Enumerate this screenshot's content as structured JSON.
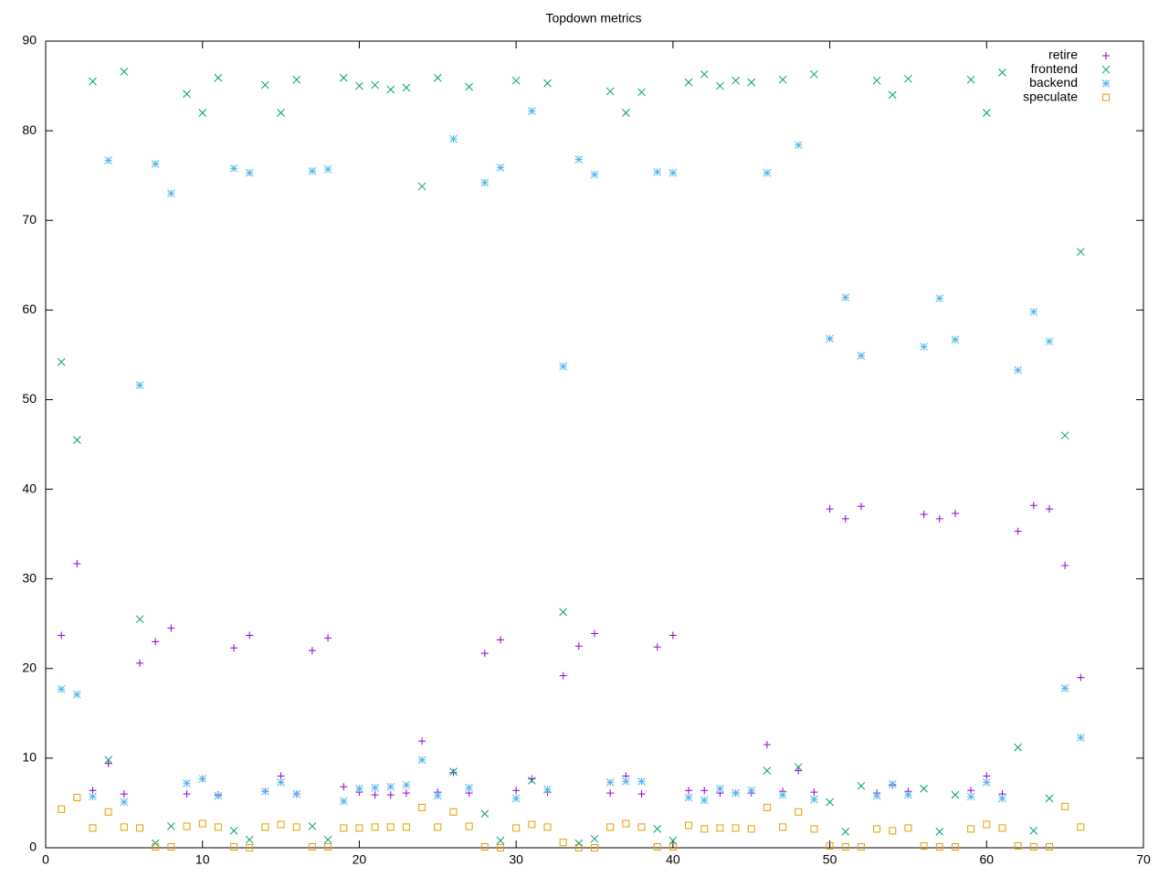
{
  "chart_data": {
    "type": "scatter",
    "title": "Topdown metrics",
    "x": [
      1,
      2,
      3,
      4,
      5,
      6,
      7,
      8,
      9,
      10,
      11,
      12,
      13,
      14,
      15,
      16,
      17,
      18,
      19,
      20,
      21,
      22,
      23,
      24,
      25,
      26,
      27,
      28,
      29,
      30,
      31,
      32,
      33,
      34,
      35,
      36,
      37,
      38,
      39,
      40,
      41,
      42,
      43,
      44,
      45,
      46,
      47,
      48,
      49,
      50,
      51,
      52,
      53,
      54,
      55,
      56,
      57,
      58,
      59,
      60,
      61,
      62,
      63,
      64,
      65,
      66
    ],
    "series": [
      {
        "name": "retire",
        "color": "#9400d3",
        "marker": "plus",
        "values": [
          23.7,
          31.7,
          6.4,
          9.4,
          6.0,
          20.6,
          23.0,
          24.5,
          6.0,
          7.7,
          5.9,
          22.3,
          23.7,
          6.3,
          8.0,
          6.0,
          22.0,
          23.4,
          6.8,
          6.2,
          5.9,
          5.9,
          6.1,
          11.9,
          6.2,
          8.4,
          6.1,
          21.7,
          23.2,
          6.4,
          7.7,
          6.2,
          19.2,
          22.5,
          23.9,
          6.1,
          8.0,
          6.0,
          22.4,
          23.7,
          6.4,
          6.4,
          6.1,
          6.1,
          6.1,
          11.5,
          6.3,
          8.6,
          6.2,
          37.8,
          36.7,
          38.1,
          6.1,
          7.0,
          6.3,
          37.2,
          36.7,
          37.3,
          6.4,
          8.0,
          6.0,
          35.3,
          38.2,
          37.8,
          31.5,
          19.0
        ]
      },
      {
        "name": "frontend",
        "color": "#009e73",
        "marker": "cross",
        "values": [
          54.2,
          45.5,
          85.5,
          9.8,
          86.6,
          25.5,
          0.5,
          2.4,
          84.1,
          82.0,
          85.9,
          1.9,
          0.9,
          85.1,
          82.0,
          85.7,
          2.4,
          0.9,
          85.9,
          85.0,
          85.1,
          84.6,
          84.8,
          73.8,
          85.9,
          8.5,
          84.9,
          3.8,
          0.8,
          85.6,
          7.5,
          85.3,
          26.3,
          0.5,
          1.0,
          84.4,
          82.0,
          84.3,
          2.1,
          0.8,
          85.4,
          86.3,
          85.0,
          85.6,
          85.4,
          8.6,
          85.7,
          9.0,
          86.3,
          5.1,
          1.8,
          6.9,
          85.6,
          84.0,
          85.8,
          6.6,
          1.8,
          5.9,
          85.7,
          82.0,
          86.5,
          11.2,
          1.9,
          5.5,
          46.0,
          66.5
        ]
      },
      {
        "name": "backend",
        "color": "#56b4e9",
        "marker": "star",
        "values": [
          17.7,
          17.1,
          5.7,
          76.7,
          5.1,
          51.6,
          76.3,
          73.0,
          7.2,
          7.7,
          5.8,
          75.8,
          75.3,
          6.3,
          7.3,
          6.0,
          75.5,
          75.7,
          5.2,
          6.6,
          6.7,
          6.8,
          7.0,
          9.8,
          5.8,
          79.1,
          6.7,
          74.2,
          75.9,
          5.5,
          82.2,
          6.5,
          53.7,
          76.8,
          75.1,
          7.3,
          7.4,
          7.4,
          75.4,
          75.3,
          5.6,
          5.3,
          6.6,
          6.1,
          6.4,
          75.3,
          5.9,
          78.4,
          5.4,
          56.8,
          61.4,
          54.9,
          5.8,
          7.1,
          5.9,
          55.9,
          61.3,
          56.7,
          5.7,
          7.3,
          5.5,
          53.3,
          59.8,
          56.5,
          17.8,
          12.3
        ]
      },
      {
        "name": "speculate",
        "color": "#e69f00",
        "marker": "square",
        "values": [
          4.3,
          5.6,
          2.2,
          4.0,
          2.3,
          2.2,
          0.1,
          0.1,
          2.4,
          2.7,
          2.3,
          0.1,
          0.0,
          2.3,
          2.6,
          2.3,
          0.1,
          0.1,
          2.2,
          2.2,
          2.3,
          2.3,
          2.3,
          4.5,
          2.3,
          4.0,
          2.4,
          0.1,
          0.0,
          2.2,
          2.6,
          2.3,
          0.6,
          0.0,
          0.0,
          2.3,
          2.7,
          2.3,
          0.1,
          0.1,
          2.5,
          2.1,
          2.2,
          2.2,
          2.1,
          4.5,
          2.3,
          4.0,
          2.1,
          0.2,
          0.1,
          0.1,
          2.1,
          1.9,
          2.2,
          0.2,
          0.1,
          0.1,
          2.1,
          2.6,
          2.2,
          0.2,
          0.1,
          0.1,
          4.6,
          2.3
        ]
      }
    ],
    "xlim": [
      0,
      70
    ],
    "xticks": [
      0,
      10,
      20,
      30,
      40,
      50,
      60,
      70
    ],
    "ylim": [
      0,
      90
    ],
    "yticks": [
      0,
      10,
      20,
      30,
      40,
      50,
      60,
      70,
      80,
      90
    ],
    "grid": false,
    "legend": "top-right"
  }
}
